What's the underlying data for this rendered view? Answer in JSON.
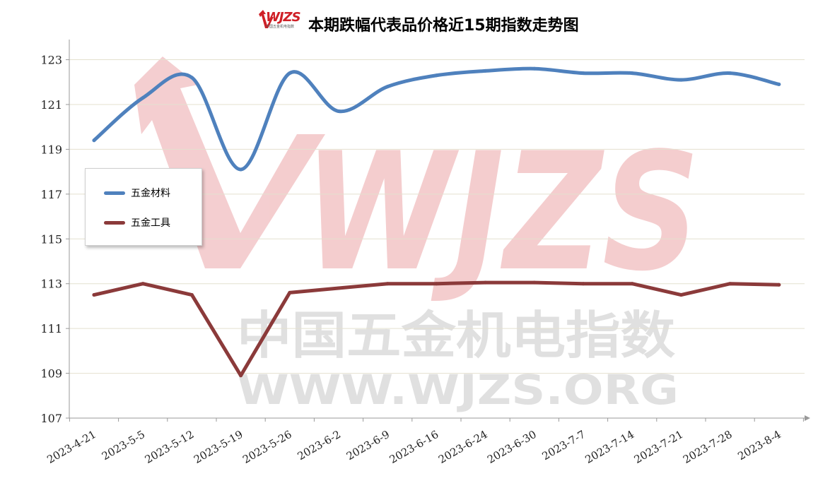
{
  "title": "本期跌幅代表品价格近15期指数走势图",
  "logo": {
    "text": "WJZS",
    "subtext": "中国五金机电指数",
    "color": "#cf2027"
  },
  "watermark": {
    "logo_text": "WJZS",
    "line1": "中国五金机电指数",
    "line2": "WWW.WJZS.ORG"
  },
  "chart_data": {
    "type": "line",
    "title": "本期跌幅代表品价格近15期指数走势图",
    "categories": [
      "2023-4-21",
      "2023-5-5",
      "2023-5-12",
      "2023-5-19",
      "2023-5-26",
      "2023-6-2",
      "2023-6-9",
      "2023-6-16",
      "2023-6-24",
      "2023-6-30",
      "2023-7-7",
      "2023-7-14",
      "2023-7-21",
      "2023-7-28",
      "2023-8-4"
    ],
    "series": [
      {
        "name": "五金材料",
        "color": "#4f81bd",
        "smooth": true,
        "values": [
          119.4,
          121.3,
          122.2,
          118.1,
          122.4,
          120.7,
          121.8,
          122.3,
          122.5,
          122.6,
          122.4,
          122.4,
          122.1,
          122.4,
          121.9
        ]
      },
      {
        "name": "五金工具",
        "color": "#8b3a3a",
        "smooth": false,
        "values": [
          112.5,
          113.0,
          112.5,
          108.9,
          112.6,
          112.8,
          113.0,
          113.0,
          113.05,
          113.05,
          113.0,
          113.0,
          112.5,
          113.0,
          112.95
        ]
      }
    ],
    "yticks": [
      107,
      109,
      111,
      113,
      115,
      117,
      119,
      121,
      123
    ],
    "ylim": [
      107,
      123.9
    ],
    "grid": true,
    "legend_position": "left"
  }
}
